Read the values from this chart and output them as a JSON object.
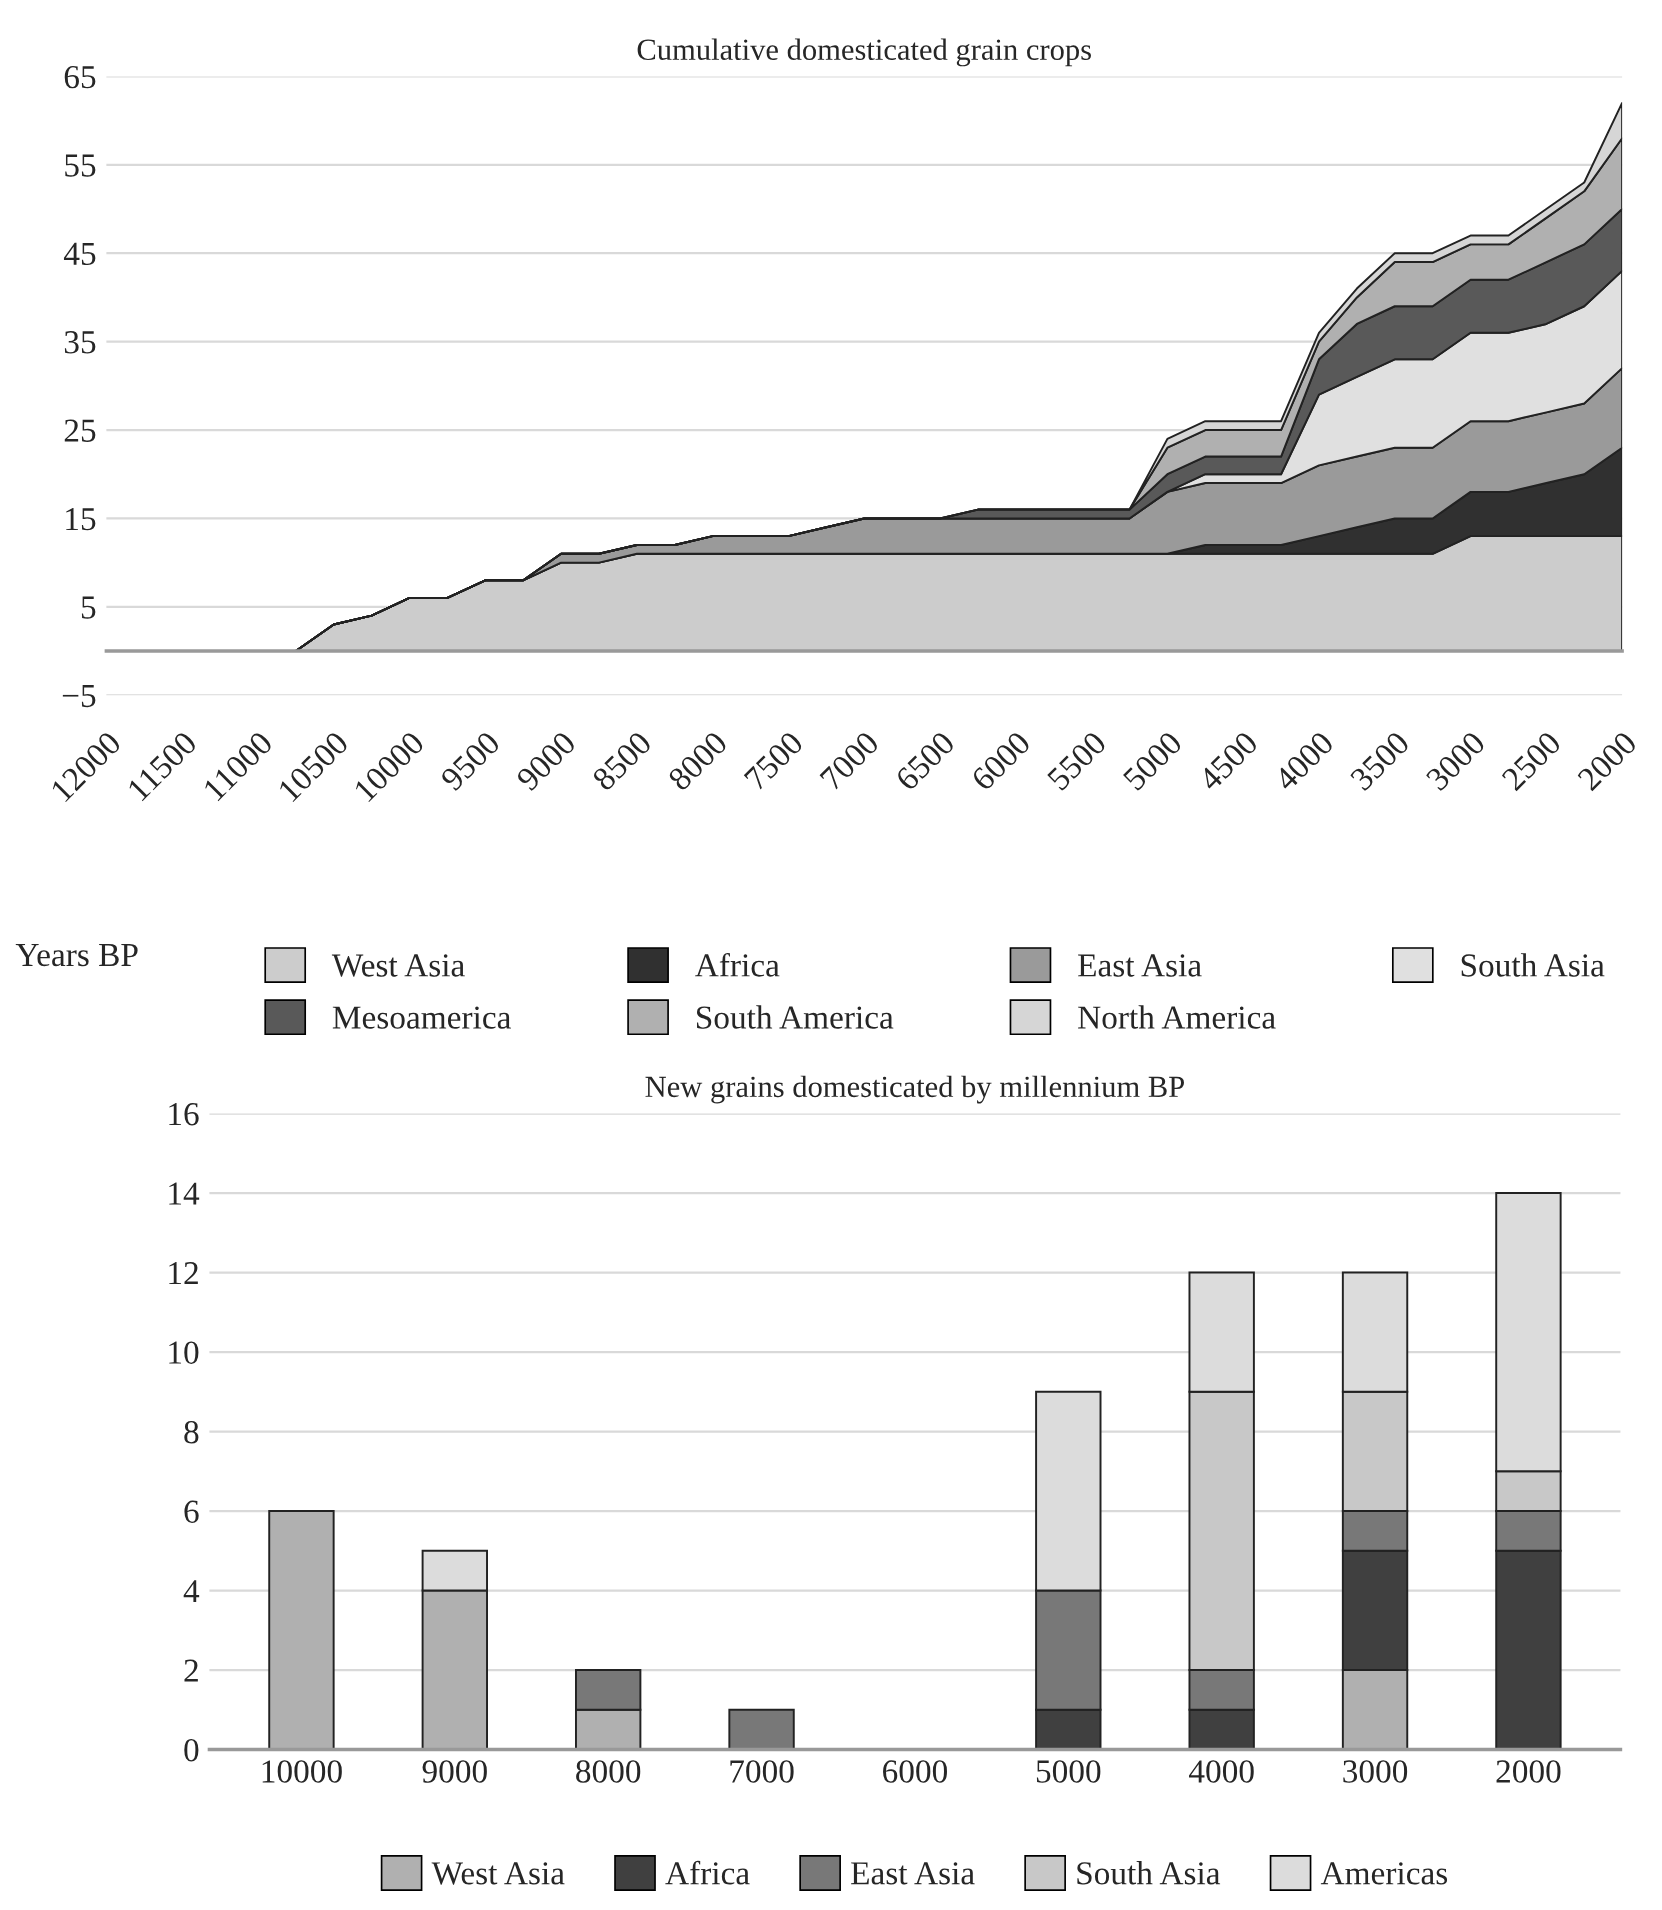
{
  "chart_data": [
    {
      "type": "area",
      "stacked": true,
      "title": "Cumulative domesticated grain crops",
      "xlabel": "Years BP",
      "x": [
        12000,
        11750,
        11500,
        11250,
        11000,
        10750,
        10500,
        10250,
        10000,
        9750,
        9500,
        9250,
        9000,
        8750,
        8500,
        8250,
        8000,
        7750,
        7500,
        7250,
        7000,
        6750,
        6500,
        6250,
        6000,
        5750,
        5500,
        5250,
        5000,
        4750,
        4500,
        4250,
        4000,
        3750,
        3500,
        3250,
        3000,
        2750,
        2500,
        2250,
        2000
      ],
      "xlim": [
        12000,
        2000
      ],
      "xticks": [
        12000,
        11500,
        11000,
        10500,
        10000,
        9500,
        9000,
        8500,
        8000,
        7500,
        7000,
        6500,
        6000,
        5500,
        5000,
        4500,
        4000,
        3500,
        3000,
        2500,
        2000
      ],
      "ylim": [
        -5,
        65
      ],
      "yticks": [
        {
          "value": -5,
          "label": "−5"
        },
        5,
        15,
        25,
        35,
        45,
        55,
        65
      ],
      "grid": "y",
      "legend": "bottom",
      "series": [
        {
          "name": "West Asia",
          "color": "#cccccc",
          "values": [
            0,
            0,
            0,
            0,
            0,
            0,
            3,
            4,
            6,
            6,
            8,
            8,
            10,
            10,
            11,
            11,
            11,
            11,
            11,
            11,
            11,
            11,
            11,
            11,
            11,
            11,
            11,
            11,
            11,
            11,
            11,
            11,
            11,
            11,
            11,
            11,
            13,
            13,
            13,
            13,
            13
          ]
        },
        {
          "name": "Africa",
          "color": "#303030",
          "values": [
            0,
            0,
            0,
            0,
            0,
            0,
            0,
            0,
            0,
            0,
            0,
            0,
            0,
            0,
            0,
            0,
            0,
            0,
            0,
            0,
            0,
            0,
            0,
            0,
            0,
            0,
            0,
            0,
            0,
            1,
            1,
            1,
            2,
            3,
            4,
            4,
            5,
            5,
            6,
            7,
            10
          ]
        },
        {
          "name": "East Asia",
          "color": "#9a9a9a",
          "values": [
            0,
            0,
            0,
            0,
            0,
            0,
            0,
            0,
            0,
            0,
            0,
            0,
            1,
            1,
            1,
            1,
            2,
            2,
            2,
            3,
            4,
            4,
            4,
            4,
            4,
            4,
            4,
            4,
            7,
            7,
            7,
            7,
            8,
            8,
            8,
            8,
            8,
            8,
            8,
            8,
            9
          ]
        },
        {
          "name": "South Asia",
          "color": "#e0e0e0",
          "values": [
            0,
            0,
            0,
            0,
            0,
            0,
            0,
            0,
            0,
            0,
            0,
            0,
            0,
            0,
            0,
            0,
            0,
            0,
            0,
            0,
            0,
            0,
            0,
            0,
            0,
            0,
            0,
            0,
            0,
            1,
            1,
            1,
            8,
            9,
            10,
            10,
            10,
            10,
            10,
            11,
            11
          ]
        },
        {
          "name": "Mesoamerica",
          "color": "#595959",
          "values": [
            0,
            0,
            0,
            0,
            0,
            0,
            0,
            0,
            0,
            0,
            0,
            0,
            0,
            0,
            0,
            0,
            0,
            0,
            0,
            0,
            0,
            0,
            0,
            1,
            1,
            1,
            1,
            1,
            2,
            2,
            2,
            2,
            4,
            6,
            6,
            6,
            6,
            6,
            7,
            7,
            7
          ]
        },
        {
          "name": "South America",
          "color": "#b0b0b0",
          "values": [
            0,
            0,
            0,
            0,
            0,
            0,
            0,
            0,
            0,
            0,
            0,
            0,
            0,
            0,
            0,
            0,
            0,
            0,
            0,
            0,
            0,
            0,
            0,
            0,
            0,
            0,
            0,
            0,
            3,
            3,
            3,
            3,
            2,
            3,
            5,
            5,
            4,
            4,
            5,
            6,
            8
          ]
        },
        {
          "name": "North America",
          "color": "#d6d6d6",
          "values": [
            0,
            0,
            0,
            0,
            0,
            0,
            0,
            0,
            0,
            0,
            0,
            0,
            0,
            0,
            0,
            0,
            0,
            0,
            0,
            0,
            0,
            0,
            0,
            0,
            0,
            0,
            0,
            0,
            1,
            1,
            1,
            1,
            1,
            1,
            1,
            1,
            1,
            1,
            1,
            1,
            4
          ]
        }
      ]
    },
    {
      "type": "bar",
      "stacked": true,
      "title": "New grains domesticated by millennium BP",
      "categories": [
        "10000",
        "9000",
        "8000",
        "7000",
        "6000",
        "5000",
        "4000",
        "3000",
        "2000"
      ],
      "ylim": [
        0,
        16
      ],
      "yticks": [
        0,
        2,
        4,
        6,
        8,
        10,
        12,
        14,
        16
      ],
      "grid": "y",
      "legend": "bottom",
      "series": [
        {
          "name": "West Asia",
          "color": "#b0b0b0",
          "values": [
            6,
            4,
            1,
            0,
            0,
            0,
            0,
            2,
            0
          ]
        },
        {
          "name": "Africa",
          "color": "#404040",
          "values": [
            0,
            0,
            0,
            0,
            0,
            1,
            1,
            3,
            5
          ]
        },
        {
          "name": "East Asia",
          "color": "#787878",
          "values": [
            0,
            0,
            1,
            1,
            0,
            3,
            1,
            1,
            1
          ]
        },
        {
          "name": "South Asia",
          "color": "#c8c8c8",
          "values": [
            0,
            0,
            0,
            0,
            0,
            0,
            7,
            3,
            1
          ]
        },
        {
          "name": "Americas",
          "color": "#dcdcdc",
          "values": [
            0,
            1,
            0,
            0,
            0,
            5,
            3,
            3,
            7
          ]
        }
      ]
    }
  ]
}
